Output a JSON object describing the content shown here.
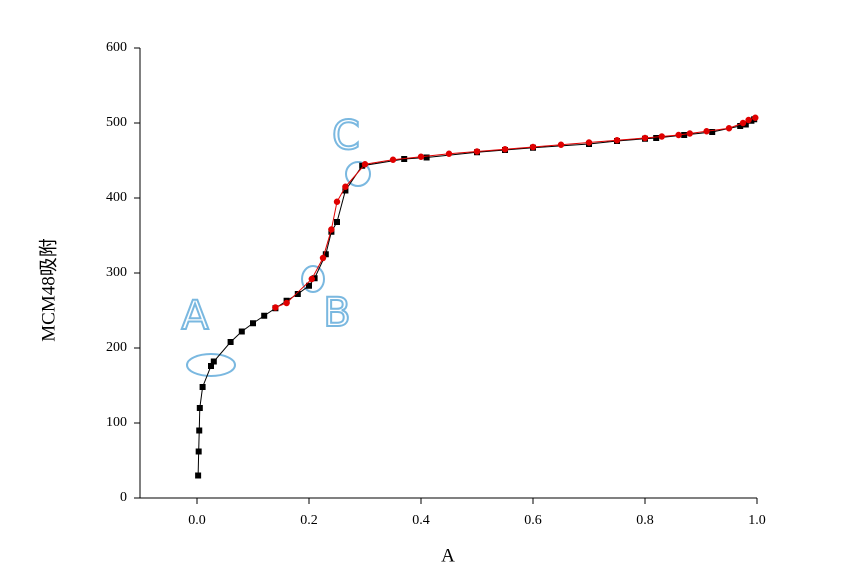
{
  "chart_data": {
    "type": "scatter-line",
    "x_label": "A",
    "y_label": "MCM48吸附",
    "xlim": [
      -0.1,
      1.0
    ],
    "ylim": [
      0,
      600
    ],
    "xticks": [
      {
        "value": 0,
        "label": "0.0"
      },
      0.2,
      0.4,
      0.6,
      0.8,
      {
        "value": 1,
        "label": "1.0"
      }
    ],
    "yticks": [
      0,
      100,
      200,
      300,
      400,
      500,
      600
    ],
    "annotations": [
      "A",
      "B",
      "C"
    ],
    "series": [
      {
        "color": "#000000",
        "marker": "square",
        "x": [
          0.002,
          0.003,
          0.004,
          0.005,
          0.01,
          0.025,
          0.03,
          0.06,
          0.08,
          0.1,
          0.12,
          0.14,
          0.16,
          0.18,
          0.2,
          0.21,
          0.23,
          0.24,
          0.25,
          0.265,
          0.295,
          0.37,
          0.41,
          0.5,
          0.55,
          0.6,
          0.7,
          0.75,
          0.8,
          0.82,
          0.87,
          0.92,
          0.97,
          0.98,
          0.99,
          0.995
        ],
        "values": [
          30,
          62,
          90,
          120,
          148,
          176,
          182,
          208,
          222,
          233,
          243,
          253,
          263,
          272,
          283,
          293,
          325,
          355,
          368,
          410,
          443,
          452,
          454,
          461,
          464,
          467,
          472,
          476,
          479,
          480,
          484,
          488,
          496,
          498,
          503,
          505
        ]
      },
      {
        "color": "#e00000",
        "marker": "circle",
        "x": [
          0.997,
          0.985,
          0.975,
          0.95,
          0.91,
          0.88,
          0.86,
          0.83,
          0.8,
          0.75,
          0.7,
          0.65,
          0.6,
          0.55,
          0.5,
          0.45,
          0.4,
          0.35,
          0.3,
          0.265,
          0.25,
          0.24,
          0.225,
          0.205,
          0.16,
          0.14
        ],
        "values": [
          507,
          504,
          500,
          493,
          489,
          486,
          484,
          482,
          480,
          477,
          474,
          471,
          468,
          465,
          462,
          459,
          455,
          451,
          445,
          415,
          395,
          358,
          320,
          292,
          260,
          254
        ]
      }
    ]
  }
}
